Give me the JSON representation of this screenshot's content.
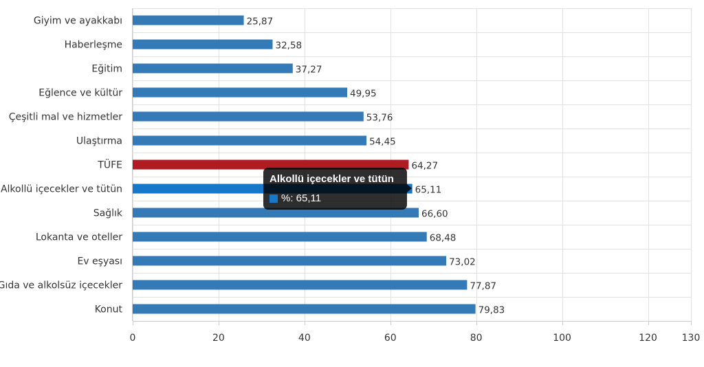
{
  "colors": {
    "bar": "#337ab7",
    "highlight": "#b01c21",
    "hover": "#1778c9",
    "grid": "#e2e2e2",
    "axis": "#cccccc"
  },
  "chart_data": {
    "type": "bar",
    "orientation": "horizontal",
    "title": "",
    "xlabel": "",
    "ylabel": "",
    "categories": [
      "Giyim ve ayakkabı",
      "Haberleşme",
      "Eğitim",
      "Eğlence ve kültür",
      "Çeşitli mal ve hizmetler",
      "Ulaştırma",
      "TÜFE",
      "Alkollü içecekler ve tütün",
      "Sağlık",
      "Lokanta ve oteller",
      "Ev eşyası",
      "Gıda ve alkolsüz içecekler",
      "Konut"
    ],
    "values": [
      25.87,
      32.58,
      37.27,
      49.95,
      53.76,
      54.45,
      64.27,
      65.11,
      66.6,
      68.48,
      73.02,
      77.87,
      79.83
    ],
    "value_labels": [
      "25,87",
      "32,58",
      "37,27",
      "49,95",
      "53,76",
      "54,45",
      "64,27",
      "65,11",
      "66,60",
      "68,48",
      "73,02",
      "77,87",
      "79,83"
    ],
    "highlighted_category": "TÜFE",
    "hovered_category": "Alkollü içecekler ve tütün",
    "xlim": [
      0,
      130
    ],
    "xticks": [
      0,
      20,
      40,
      60,
      80,
      100,
      120,
      130
    ],
    "xtick_labels": [
      "0",
      "20",
      "40",
      "60",
      "80",
      "100",
      "120",
      "130"
    ],
    "grid": true
  },
  "tooltip": {
    "title": "Alkollü içecekler ve tütün",
    "text": "%: 65,11"
  }
}
